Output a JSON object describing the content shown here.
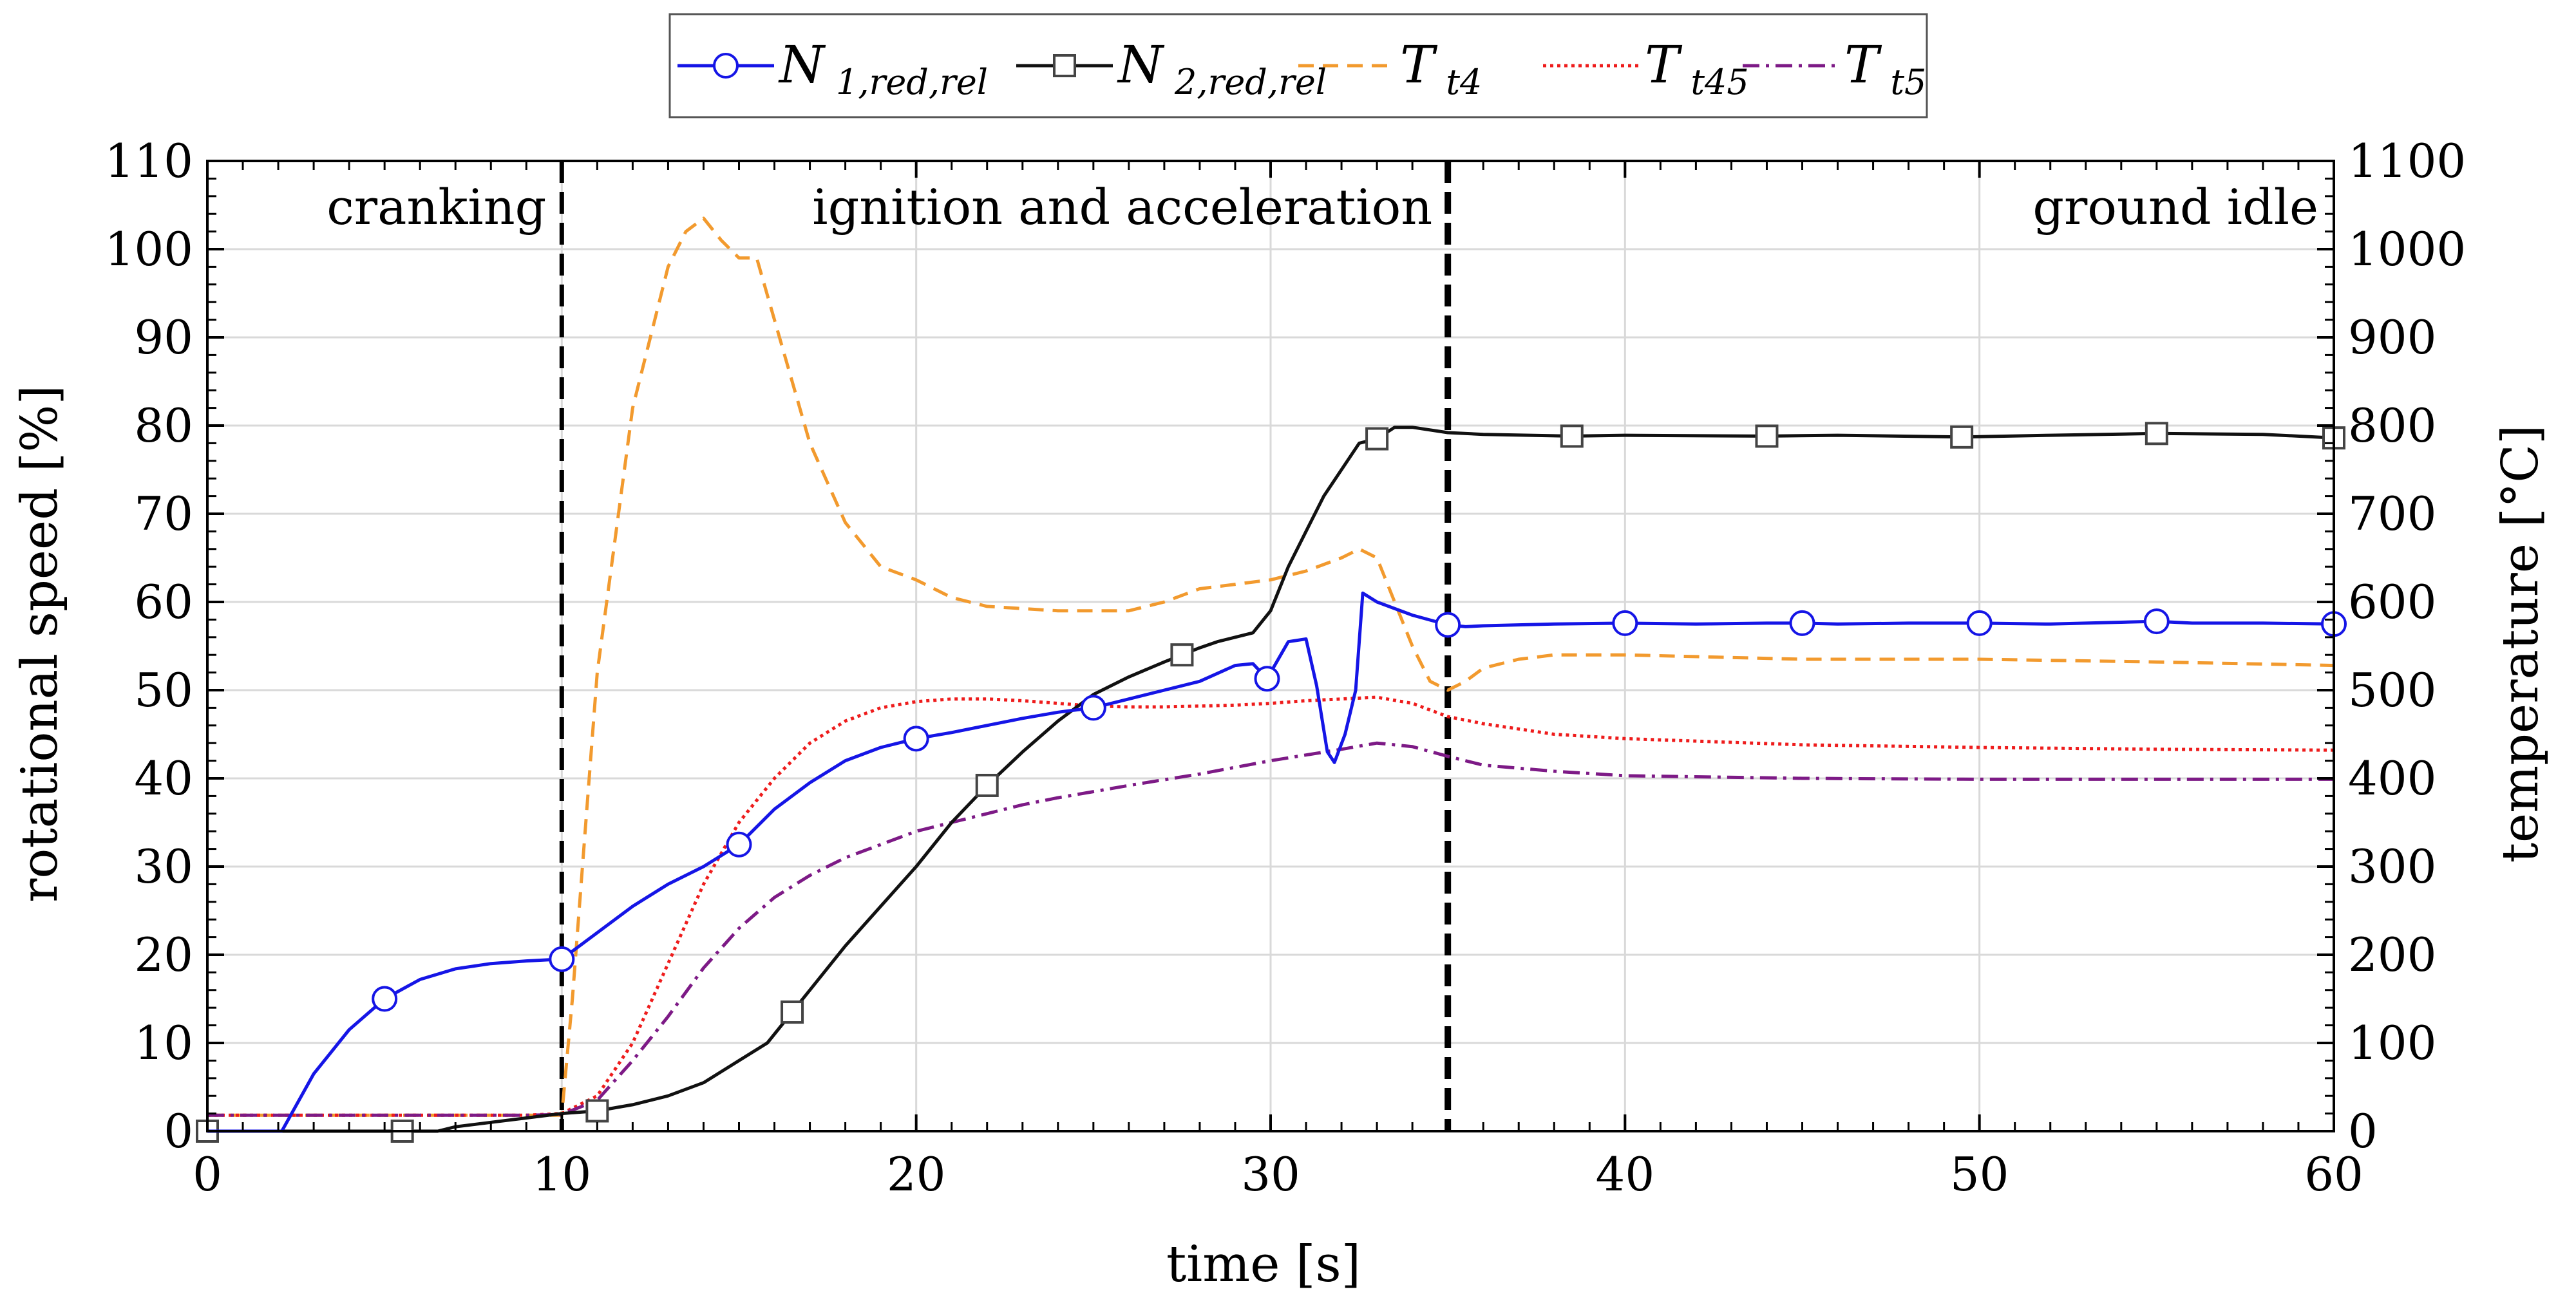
{
  "chart_data": {
    "type": "line",
    "title": "",
    "xlabel": "time [s]",
    "ylabel": "rotational speed [%]",
    "y2label": "temperature [°C]",
    "xlim": [
      0,
      60
    ],
    "ylim": [
      0,
      110
    ],
    "y2lim": [
      0,
      1100
    ],
    "xticks": [
      0,
      10,
      20,
      30,
      40,
      50,
      60
    ],
    "yticks": [
      0,
      10,
      20,
      30,
      40,
      50,
      60,
      70,
      80,
      90,
      100,
      110
    ],
    "y2ticks": [
      0,
      100,
      200,
      300,
      400,
      500,
      600,
      700,
      800,
      900,
      1000,
      1100
    ],
    "xtick_labels": [
      "0",
      "10",
      "20",
      "30",
      "40",
      "50",
      "60"
    ],
    "ytick_labels": [
      "0",
      "10",
      "20",
      "30",
      "40",
      "50",
      "60",
      "70",
      "80",
      "90",
      "100",
      "110"
    ],
    "y2tick_labels": [
      "0",
      "100",
      "200",
      "300",
      "400",
      "500",
      "600",
      "700",
      "800",
      "900",
      "1000",
      "1100"
    ],
    "grid": true,
    "legend_position": "top-center",
    "phase_lines": [
      10,
      35
    ],
    "phases": [
      {
        "label": "cranking",
        "anchor_x": 10,
        "align": "end"
      },
      {
        "label": "ignition and acceleration",
        "anchor_x": 35,
        "align": "end"
      },
      {
        "label": "ground idle",
        "anchor_x": 60,
        "align": "end"
      }
    ],
    "series": [
      {
        "name": "N 1,red,rel",
        "name_main": "N",
        "name_sub": "1,red,rel",
        "axis": "left",
        "color": "#1515e6",
        "dash": "",
        "marker": "circle",
        "markers_x": [
          5,
          10,
          15,
          20,
          25,
          29.9,
          35,
          40,
          45,
          50,
          55,
          60
        ],
        "x": [
          0,
          2.1,
          3,
          4,
          5,
          6,
          7,
          8,
          9,
          10,
          11,
          12,
          13,
          14,
          15,
          16,
          17,
          18,
          19,
          20,
          21,
          22,
          23,
          24,
          25,
          26,
          27,
          28,
          29,
          29.5,
          29.9,
          30.5,
          31,
          31.3,
          31.6,
          31.8,
          32.1,
          32.4,
          32.6,
          33,
          34,
          35,
          35.5,
          36,
          38,
          40,
          42,
          44,
          45,
          46,
          48,
          50,
          52,
          54,
          55,
          56,
          58,
          60
        ],
        "values": [
          0,
          0,
          6.5,
          11.5,
          15,
          17.2,
          18.4,
          19,
          19.3,
          19.5,
          22.5,
          25.5,
          28,
          30,
          32.5,
          36.5,
          39.5,
          42,
          43.5,
          44.5,
          45.2,
          46,
          46.8,
          47.5,
          48,
          49,
          50,
          51,
          52.8,
          53,
          51.3,
          55.5,
          55.8,
          50.5,
          43,
          41.8,
          45,
          50,
          61,
          60,
          58.5,
          57.4,
          57.2,
          57.3,
          57.5,
          57.6,
          57.5,
          57.6,
          57.6,
          57.5,
          57.6,
          57.6,
          57.5,
          57.7,
          57.8,
          57.6,
          57.6,
          57.5
        ]
      },
      {
        "name": "N 2,red,rel",
        "name_main": "N",
        "name_sub": "2,red,rel",
        "axis": "left",
        "color": "#111111",
        "dash": "",
        "marker": "square",
        "markers_x": [
          0,
          5.5,
          11,
          16.5,
          22,
          27.5,
          33,
          38.5,
          44,
          49.5,
          55,
          60
        ],
        "x": [
          0,
          6.5,
          7,
          8,
          9,
          10,
          11,
          12,
          13,
          14,
          15,
          15.8,
          16.5,
          17,
          18,
          19,
          20,
          21,
          22,
          23,
          24,
          25,
          26,
          27,
          27.5,
          28,
          28.5,
          29,
          29.5,
          30,
          30.5,
          31,
          31.5,
          32,
          32.5,
          33,
          33.5,
          34,
          35,
          36,
          38.5,
          40,
          44,
          46,
          49.5,
          52,
          55,
          58,
          60
        ],
        "values": [
          0,
          0,
          0.5,
          1,
          1.5,
          2,
          2.3,
          3,
          4,
          5.5,
          8,
          10,
          13.5,
          16,
          21,
          25.5,
          30,
          35,
          39.2,
          43,
          46.5,
          49.5,
          51.5,
          53.2,
          54,
          54.8,
          55.5,
          56,
          56.5,
          59,
          64,
          68,
          72,
          75,
          78,
          78.5,
          79.8,
          79.8,
          79.2,
          79,
          78.8,
          78.9,
          78.8,
          78.9,
          78.7,
          78.9,
          79.1,
          79,
          78.6
        ]
      },
      {
        "name": "T t4",
        "name_main": "T",
        "name_sub": "t4",
        "axis": "right",
        "color": "#f29a2e",
        "dash": "24 14",
        "marker": "",
        "x": [
          0,
          9,
          10,
          10.3,
          11,
          12,
          13,
          13.5,
          14,
          14.5,
          15,
          15.5,
          16,
          17,
          18,
          19,
          20,
          21,
          22,
          24,
          26,
          27,
          28,
          29,
          30,
          31,
          32,
          32.5,
          33,
          33.5,
          34,
          34.5,
          35,
          35.5,
          36,
          37,
          38,
          40,
          45,
          50,
          55,
          60
        ],
        "values": [
          18,
          18,
          18,
          150,
          520,
          820,
          980,
          1020,
          1035,
          1010,
          990,
          990,
          920,
          780,
          690,
          640,
          625,
          605,
          595,
          590,
          590,
          600,
          615,
          620,
          625,
          635,
          650,
          660,
          650,
          600,
          550,
          510,
          500,
          510,
          525,
          535,
          540,
          540,
          535,
          535,
          532,
          528
        ]
      },
      {
        "name": "T t45",
        "name_main": "T",
        "name_sub": "t45",
        "axis": "right",
        "color": "#ee1c1c",
        "dash": "5 6",
        "marker": "",
        "x": [
          0,
          9,
          10,
          11,
          12,
          13,
          14,
          15,
          16,
          17,
          18,
          19,
          20,
          21,
          22,
          23,
          24,
          25,
          26,
          27,
          28,
          29,
          30,
          31,
          32,
          33,
          34,
          35,
          36,
          38,
          40,
          45,
          50,
          55,
          60
        ],
        "values": [
          18,
          18,
          20,
          40,
          100,
          190,
          280,
          350,
          400,
          440,
          465,
          480,
          487,
          490,
          490,
          488,
          485,
          482,
          481,
          481,
          482,
          483,
          485,
          488,
          490,
          492,
          485,
          470,
          462,
          450,
          445,
          438,
          435,
          433,
          432
        ]
      },
      {
        "name": "T t5",
        "name_main": "T",
        "name_sub": "t5",
        "axis": "right",
        "color": "#7d1a86",
        "dash": "26 10 5 10",
        "marker": "",
        "x": [
          0,
          9,
          10,
          11,
          12,
          13,
          14,
          15,
          16,
          17,
          18,
          19,
          20,
          21,
          22,
          23,
          24,
          25,
          26,
          28,
          30,
          32,
          33,
          34,
          35,
          36,
          38,
          40,
          45,
          50,
          55,
          60
        ],
        "values": [
          18,
          18,
          19,
          35,
          80,
          130,
          185,
          230,
          265,
          290,
          310,
          325,
          340,
          350,
          360,
          370,
          378,
          385,
          392,
          405,
          420,
          433,
          440,
          436,
          425,
          415,
          408,
          403,
          400,
          399,
          399,
          399
        ]
      }
    ]
  }
}
